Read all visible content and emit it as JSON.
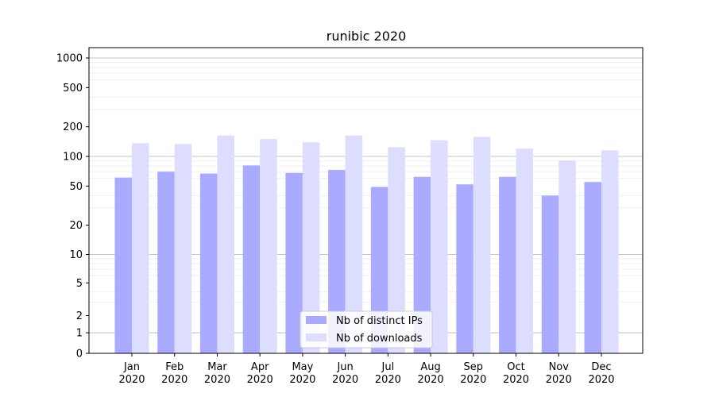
{
  "chart_data": {
    "type": "bar",
    "title": "runibic 2020",
    "xlabel": "",
    "ylabel": "",
    "yscale": "symlog",
    "ylim": [
      0,
      1200
    ],
    "yticks": [
      {
        "value": 0,
        "label": "0"
      },
      {
        "value": 1,
        "label": "1"
      },
      {
        "value": 2,
        "label": "2"
      },
      {
        "value": 5,
        "label": "5"
      },
      {
        "value": 10,
        "label": "10"
      },
      {
        "value": 20,
        "label": "20"
      },
      {
        "value": 50,
        "label": "50"
      },
      {
        "value": 100,
        "label": "100"
      },
      {
        "value": 200,
        "label": "200"
      },
      {
        "value": 500,
        "label": "500"
      },
      {
        "value": 1000,
        "label": "1000"
      }
    ],
    "categories": [
      [
        "Jan",
        "2020"
      ],
      [
        "Feb",
        "2020"
      ],
      [
        "Mar",
        "2020"
      ],
      [
        "Apr",
        "2020"
      ],
      [
        "May",
        "2020"
      ],
      [
        "Jun",
        "2020"
      ],
      [
        "Jul",
        "2020"
      ],
      [
        "Aug",
        "2020"
      ],
      [
        "Sep",
        "2020"
      ],
      [
        "Oct",
        "2020"
      ],
      [
        "Nov",
        "2020"
      ],
      [
        "Dec",
        "2020"
      ]
    ],
    "series": [
      {
        "name": "Nb of distinct IPs",
        "color": "#aaaaff",
        "values": [
          61,
          70,
          67,
          81,
          68,
          73,
          49,
          62,
          52,
          62,
          40,
          55
        ]
      },
      {
        "name": "Nb of downloads",
        "color": "#ddddff",
        "values": [
          136,
          134,
          163,
          150,
          139,
          163,
          124,
          146,
          158,
          120,
          91,
          115
        ]
      }
    ],
    "grid": true,
    "legend_position": "bottom-center"
  }
}
